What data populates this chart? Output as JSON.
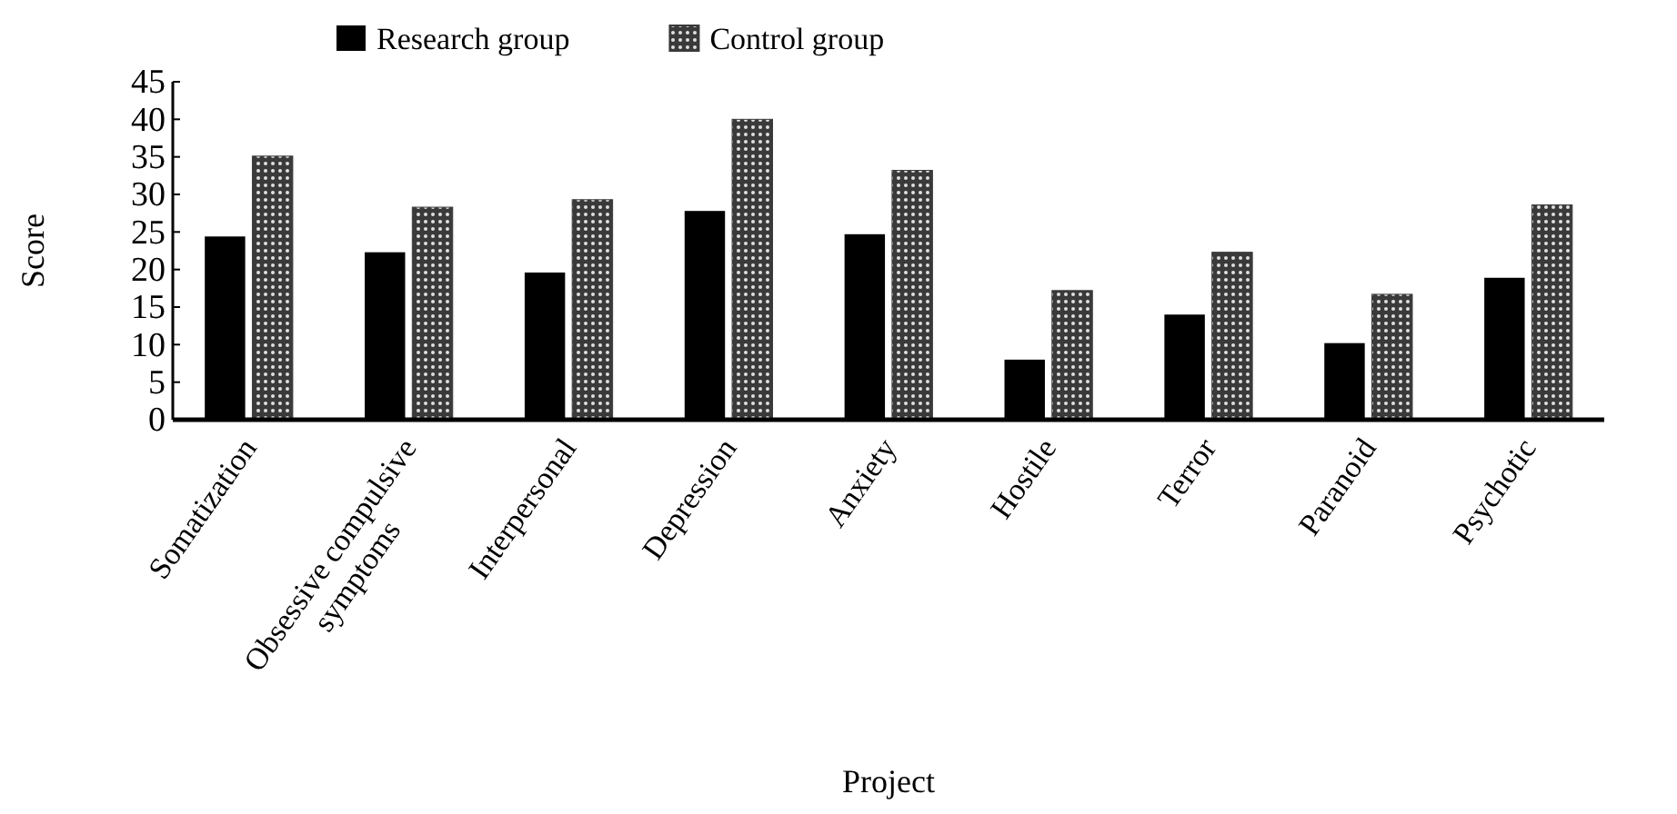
{
  "chart_data": {
    "type": "bar",
    "xlabel": "Project",
    "ylabel": "Score",
    "categories": [
      "Somatization",
      "Obsessive compulsive symptoms",
      "Interpersonal",
      "Depression",
      "Anxiety",
      "Hostile",
      "Terror",
      "Paranoid",
      "Psychotic"
    ],
    "series": [
      {
        "name": "Research group",
        "color": "#000000",
        "values": [
          24.4,
          22.3,
          19.6,
          27.8,
          24.7,
          8.0,
          14.0,
          10.2,
          18.9
        ]
      },
      {
        "name": "Control group",
        "color": "#3a3a3a",
        "values": [
          35.1,
          28.3,
          29.3,
          40.0,
          33.2,
          17.2,
          22.3,
          16.7,
          28.6
        ]
      }
    ],
    "ylim": [
      0,
      45
    ],
    "yticks": [
      0,
      5,
      10,
      15,
      20,
      25,
      30,
      35,
      40,
      45
    ],
    "legend": "top",
    "grid": false
  }
}
